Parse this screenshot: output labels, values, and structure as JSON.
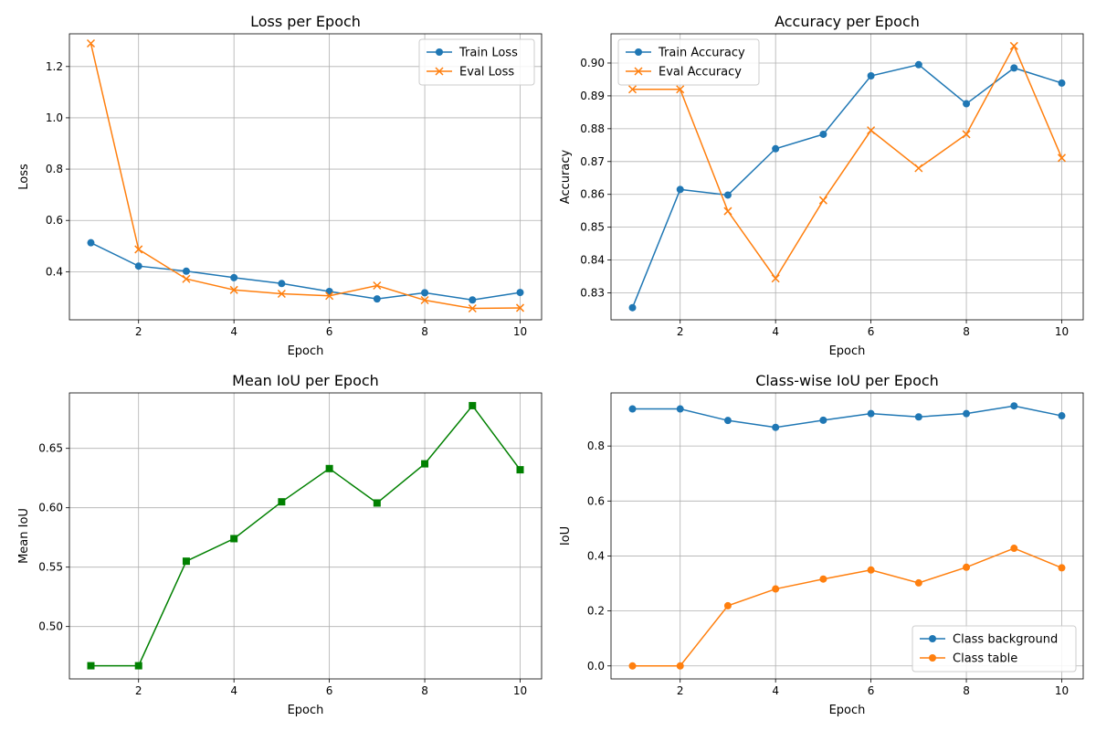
{
  "chart_data": [
    {
      "type": "line",
      "title": "Loss per Epoch",
      "xlabel": "Epoch",
      "ylabel": "Loss",
      "x": [
        1,
        2,
        3,
        4,
        5,
        6,
        7,
        8,
        9,
        10
      ],
      "xlim": [
        0.55,
        10.45
      ],
      "ylim": [
        0.2125,
        1.3275
      ],
      "xticks": [
        2,
        4,
        6,
        8,
        10
      ],
      "yticks": [
        0.4,
        0.6,
        0.8,
        1.0,
        1.2
      ],
      "ytick_labels": [
        "0.4",
        "0.6",
        "0.8",
        "1.0",
        "1.2"
      ],
      "grid": true,
      "legend": "upper-right",
      "series": [
        {
          "name": "Train Loss",
          "color": "#1f77b4",
          "marker": "circle",
          "values": [
            0.513,
            0.422,
            0.402,
            0.377,
            0.354,
            0.323,
            0.294,
            0.318,
            0.29,
            0.319
          ]
        },
        {
          "name": "Eval Loss",
          "color": "#ff7f0e",
          "marker": "x",
          "values": [
            1.29,
            0.487,
            0.372,
            0.329,
            0.314,
            0.306,
            0.346,
            0.289,
            0.257,
            0.259
          ]
        }
      ]
    },
    {
      "type": "line",
      "title": "Accuracy per Epoch",
      "xlabel": "Epoch",
      "ylabel": "Accuracy",
      "x": [
        1,
        2,
        3,
        4,
        5,
        6,
        7,
        8,
        9,
        10
      ],
      "xlim": [
        0.55,
        10.45
      ],
      "ylim": [
        0.8218,
        0.9089
      ],
      "xticks": [
        2,
        4,
        6,
        8,
        10
      ],
      "yticks": [
        0.83,
        0.84,
        0.85,
        0.86,
        0.87,
        0.88,
        0.89,
        0.9
      ],
      "ytick_labels": [
        "0.83",
        "0.84",
        "0.85",
        "0.86",
        "0.87",
        "0.88",
        "0.89",
        "0.90"
      ],
      "grid": true,
      "legend": "upper-left",
      "series": [
        {
          "name": "Train Accuracy",
          "color": "#1f77b4",
          "marker": "circle",
          "values": [
            0.8255,
            0.8615,
            0.8598,
            0.8739,
            0.8783,
            0.8961,
            0.8995,
            0.8876,
            0.8985,
            0.8939
          ]
        },
        {
          "name": "Eval Accuracy",
          "color": "#ff7f0e",
          "marker": "x",
          "values": [
            0.892,
            0.892,
            0.8549,
            0.8344,
            0.8582,
            0.8795,
            0.868,
            0.8783,
            0.9052,
            0.8711
          ]
        }
      ]
    },
    {
      "type": "line",
      "title": "Mean IoU per Epoch",
      "xlabel": "Epoch",
      "ylabel": "Mean IoU",
      "x": [
        1,
        2,
        3,
        4,
        5,
        6,
        7,
        8,
        9,
        10
      ],
      "xlim": [
        0.55,
        10.45
      ],
      "ylim": [
        0.4559,
        0.6967
      ],
      "xticks": [
        2,
        4,
        6,
        8,
        10
      ],
      "yticks": [
        0.5,
        0.55,
        0.6,
        0.65
      ],
      "ytick_labels": [
        "0.50",
        "0.55",
        "0.60",
        "0.65"
      ],
      "grid": true,
      "series": [
        {
          "color": "#008000",
          "marker": "square",
          "values": [
            0.467,
            0.467,
            0.555,
            0.574,
            0.605,
            0.633,
            0.604,
            0.637,
            0.686,
            0.632
          ]
        }
      ]
    },
    {
      "type": "line",
      "title": "Class-wise IoU per Epoch",
      "xlabel": "Epoch",
      "ylabel": "IoU",
      "x": [
        1,
        2,
        3,
        4,
        5,
        6,
        7,
        8,
        9,
        10
      ],
      "xlim": [
        0.55,
        10.45
      ],
      "ylim": [
        -0.0473,
        0.9933
      ],
      "xticks": [
        2,
        4,
        6,
        8,
        10
      ],
      "yticks": [
        0.0,
        0.2,
        0.4,
        0.6,
        0.8
      ],
      "ytick_labels": [
        "0.0",
        "0.2",
        "0.4",
        "0.6",
        "0.8"
      ],
      "grid": true,
      "legend": "lower-right",
      "series": [
        {
          "name": "Class background",
          "color": "#1f77b4",
          "marker": "circle",
          "values": [
            0.935,
            0.935,
            0.893,
            0.868,
            0.894,
            0.918,
            0.906,
            0.918,
            0.946,
            0.91
          ]
        },
        {
          "name": "Class table",
          "color": "#ff7f0e",
          "marker": "circle",
          "values": [
            0.0,
            0.0,
            0.219,
            0.28,
            0.316,
            0.349,
            0.302,
            0.359,
            0.428,
            0.357
          ]
        }
      ]
    }
  ]
}
